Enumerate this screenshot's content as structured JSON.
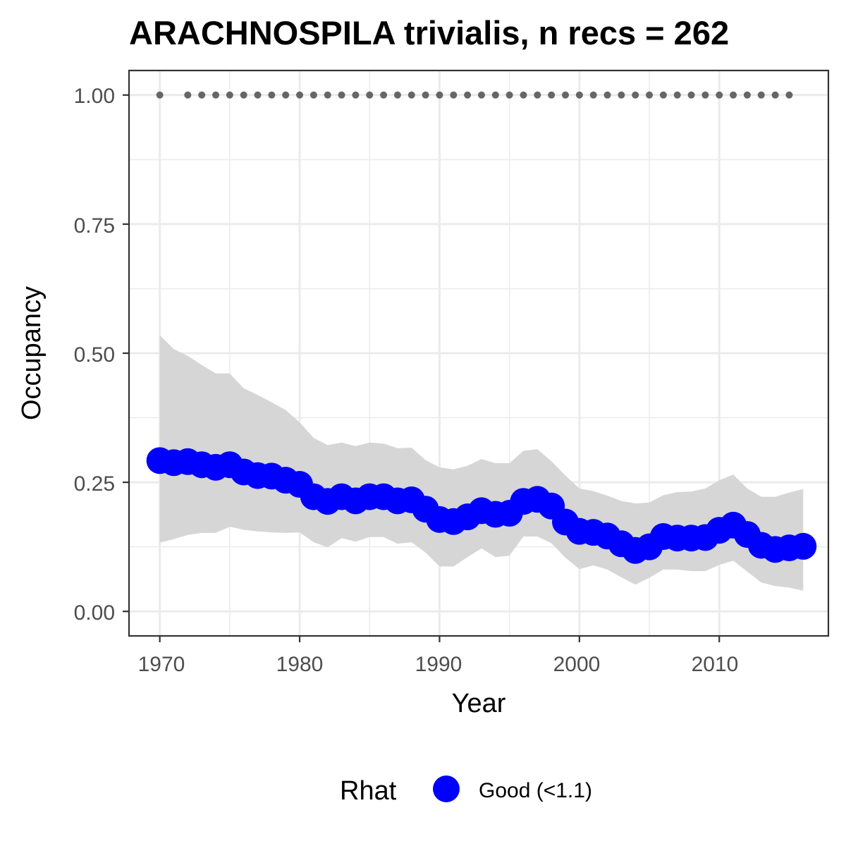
{
  "chart_data": {
    "type": "line",
    "title": "ARACHNOSPILA trivialis, n recs = 262",
    "xlabel": "Year",
    "ylabel": "Occupancy",
    "xlim": [
      1967.8,
      2017.8
    ],
    "ylim": [
      -0.0475,
      1.0475
    ],
    "x_ticks": [
      1970,
      1980,
      1990,
      2000,
      2010
    ],
    "x_tick_labels": [
      "1970",
      "1980",
      "1990",
      "2000",
      "2010"
    ],
    "y_ticks": [
      0,
      0.25,
      0.5,
      0.75,
      1.0
    ],
    "y_tick_labels": [
      "0.00",
      "0.25",
      "0.50",
      "0.75",
      "1.00"
    ],
    "grid": true,
    "legend": {
      "title": "Rhat",
      "position": "bottom",
      "entries": [
        {
          "label": "Good (<1.1)",
          "color": "#0000ff"
        }
      ]
    },
    "colors": {
      "points": "#0000ff",
      "ribbon": "#d6d6d6",
      "record_dots": "#666666",
      "grid": "#ebebeb",
      "border": "#333333"
    },
    "years": [
      1970,
      1971,
      1972,
      1973,
      1974,
      1975,
      1976,
      1977,
      1978,
      1979,
      1980,
      1981,
      1982,
      1983,
      1984,
      1985,
      1986,
      1987,
      1988,
      1989,
      1990,
      1991,
      1992,
      1993,
      1994,
      1995,
      1996,
      1997,
      1998,
      1999,
      2000,
      2001,
      2002,
      2003,
      2004,
      2005,
      2006,
      2007,
      2008,
      2009,
      2010,
      2011,
      2012,
      2013,
      2014,
      2015,
      2016
    ],
    "series": [
      {
        "name": "Good (<1.1)",
        "values": [
          0.292,
          0.288,
          0.29,
          0.284,
          0.279,
          0.284,
          0.27,
          0.263,
          0.262,
          0.254,
          0.246,
          0.222,
          0.213,
          0.222,
          0.214,
          0.222,
          0.222,
          0.214,
          0.216,
          0.198,
          0.178,
          0.174,
          0.183,
          0.195,
          0.188,
          0.19,
          0.213,
          0.217,
          0.204,
          0.173,
          0.155,
          0.153,
          0.146,
          0.131,
          0.118,
          0.125,
          0.145,
          0.142,
          0.142,
          0.143,
          0.157,
          0.167,
          0.149,
          0.128,
          0.12,
          0.123,
          0.126
        ]
      }
    ],
    "ci_lower": [
      0.133,
      0.14,
      0.148,
      0.152,
      0.152,
      0.164,
      0.158,
      0.155,
      0.153,
      0.152,
      0.153,
      0.134,
      0.124,
      0.142,
      0.135,
      0.144,
      0.144,
      0.131,
      0.134,
      0.114,
      0.087,
      0.087,
      0.105,
      0.122,
      0.105,
      0.108,
      0.145,
      0.145,
      0.132,
      0.104,
      0.082,
      0.089,
      0.081,
      0.066,
      0.052,
      0.065,
      0.081,
      0.081,
      0.078,
      0.078,
      0.09,
      0.098,
      0.077,
      0.056,
      0.049,
      0.046,
      0.04
    ],
    "ci_upper": [
      0.535,
      0.508,
      0.495,
      0.477,
      0.461,
      0.461,
      0.432,
      0.419,
      0.405,
      0.39,
      0.366,
      0.336,
      0.322,
      0.327,
      0.32,
      0.327,
      0.325,
      0.316,
      0.317,
      0.293,
      0.279,
      0.275,
      0.282,
      0.295,
      0.287,
      0.287,
      0.311,
      0.314,
      0.291,
      0.263,
      0.238,
      0.233,
      0.224,
      0.214,
      0.209,
      0.211,
      0.225,
      0.231,
      0.232,
      0.238,
      0.254,
      0.265,
      0.238,
      0.222,
      0.222,
      0.23,
      0.237
    ],
    "record_years": [
      1970,
      1972,
      1973,
      1974,
      1975,
      1976,
      1977,
      1978,
      1979,
      1980,
      1981,
      1982,
      1983,
      1984,
      1985,
      1986,
      1987,
      1988,
      1989,
      1990,
      1991,
      1992,
      1993,
      1994,
      1995,
      1996,
      1997,
      1998,
      1999,
      2000,
      2001,
      2002,
      2003,
      2004,
      2005,
      2006,
      2007,
      2008,
      2009,
      2010,
      2011,
      2012,
      2013,
      2014,
      2015
    ],
    "record_value": 1.0
  }
}
